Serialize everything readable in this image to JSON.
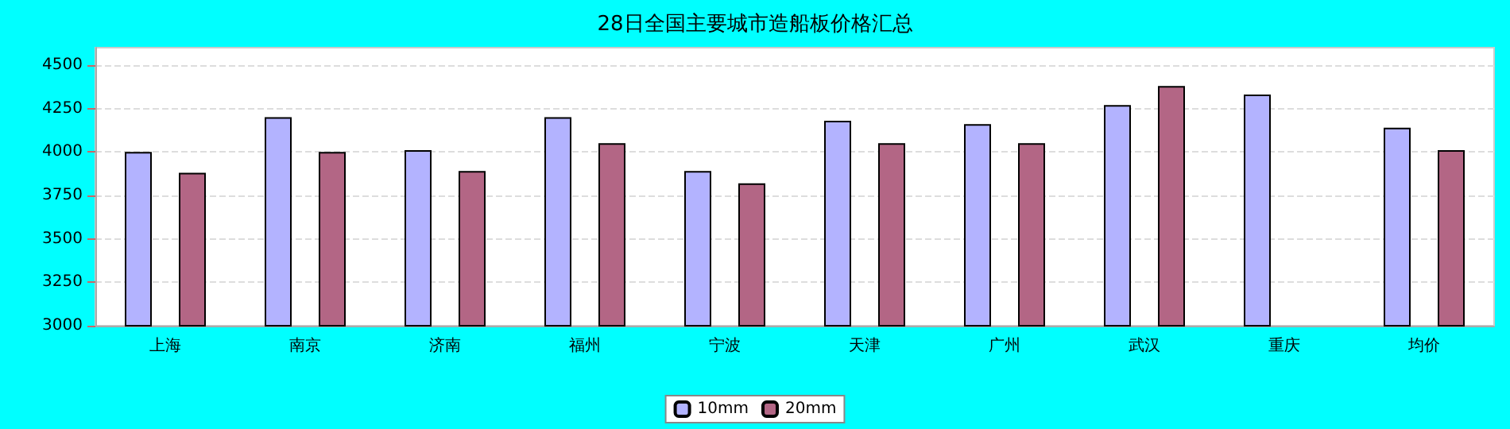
{
  "chart_data": {
    "type": "bar",
    "title": "28日全国主要城市造船板价格汇总",
    "categories": [
      "上海",
      "南京",
      "济南",
      "福州",
      "宁波",
      "天津",
      "广州",
      "武汉",
      "重庆",
      "均价"
    ],
    "series": [
      {
        "name": "10mm",
        "color": "#b3b3ff",
        "values": [
          4000,
          4200,
          4010,
          4200,
          3890,
          4180,
          4160,
          4270,
          4330,
          4140
        ]
      },
      {
        "name": "20mm",
        "color": "#b36685",
        "values": [
          3880,
          4000,
          3890,
          4050,
          3820,
          4050,
          4050,
          4380,
          null,
          4010
        ]
      }
    ],
    "ylim": [
      3000,
      4600
    ],
    "yticks": [
      3000,
      3250,
      3500,
      3750,
      4000,
      4250,
      4500
    ],
    "grid": "y",
    "legend": "bottom"
  }
}
